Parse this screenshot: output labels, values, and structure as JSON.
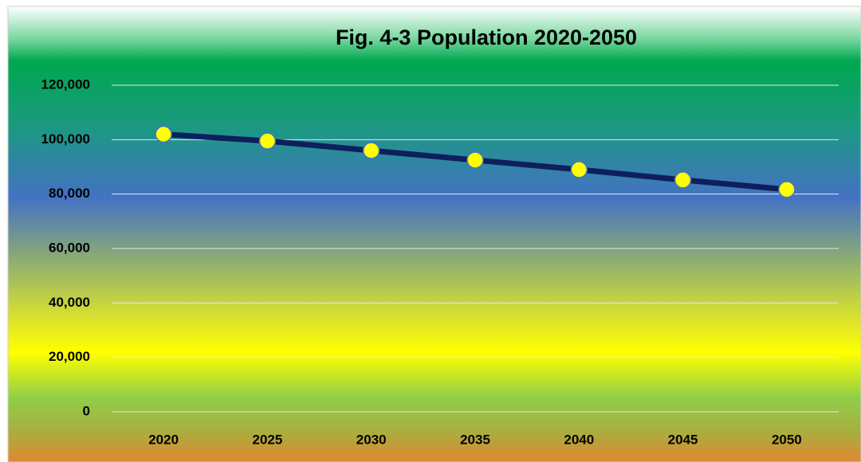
{
  "chart_data": {
    "type": "line",
    "title": "Fig. 4-3 Population 2020-2050",
    "categories": [
      "2020",
      "2025",
      "2030",
      "2035",
      "2040",
      "2045",
      "2050"
    ],
    "values": [
      102000,
      99500,
      96000,
      92500,
      89000,
      85200,
      81700
    ],
    "color": "#0d1f5c",
    "marker_color": "#ffff00",
    "ylim": [
      0,
      120000
    ],
    "yticks": [
      0,
      {
        "value": 20000,
        "label": "20,000"
      },
      {
        "value": 40000,
        "label": "40,000"
      },
      {
        "value": 60000,
        "label": "60,000"
      },
      {
        "value": 80000,
        "label": "80,000"
      },
      {
        "value": 100000,
        "label": "100,000"
      },
      {
        "value": 120000,
        "label": "120,000"
      }
    ],
    "grid": true
  }
}
